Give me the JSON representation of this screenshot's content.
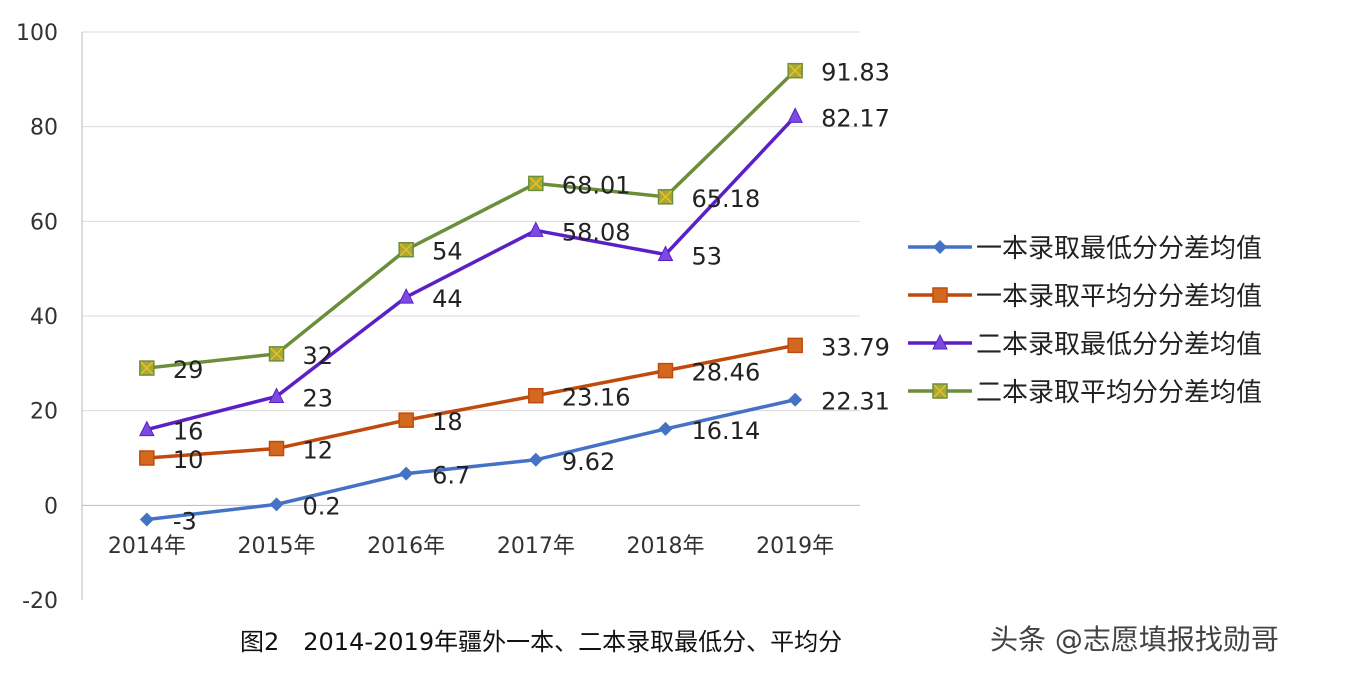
{
  "chart_data": {
    "type": "line",
    "categories": [
      "2014年",
      "2015年",
      "2016年",
      "2017年",
      "2018年",
      "2019年"
    ],
    "ylim": [
      -20,
      100
    ],
    "yticks": [
      -20,
      0,
      20,
      40,
      60,
      80,
      100
    ],
    "grid": true,
    "legend_position": "right",
    "series": [
      {
        "name": "一本录取最低分分差均值",
        "values": [
          -3,
          0.2,
          6.7,
          9.62,
          16.14,
          22.31
        ],
        "labels": [
          "-3",
          "0.2",
          "6.7",
          "9.62",
          "16.14",
          "22.31"
        ],
        "color": "#4472C4",
        "marker": "diamond"
      },
      {
        "name": "一本录取平均分分差均值",
        "values": [
          10,
          12,
          18,
          23.16,
          28.46,
          33.79
        ],
        "labels": [
          "10",
          "12",
          "18",
          "23.16",
          "28.46",
          "33.79"
        ],
        "color": "#C04A0E",
        "marker": "square"
      },
      {
        "name": "二本录取最低分分差均值",
        "values": [
          16,
          23,
          44,
          58.08,
          53,
          82.17
        ],
        "labels": [
          "16",
          "23",
          "44",
          "58.08",
          "53",
          "82.17"
        ],
        "color": "#5B1FC8",
        "marker": "triangle"
      },
      {
        "name": "二本录取平均分分差均值",
        "values": [
          29,
          32,
          54,
          68.01,
          65.18,
          91.83
        ],
        "labels": [
          "29",
          "32",
          "54",
          "68.01",
          "65.18",
          "91.83"
        ],
        "color": "#6B8E3A",
        "marker": "x-square"
      }
    ]
  },
  "caption": "图2　2014-2019年疆外一本、二本录取最低分、平均分",
  "watermark": "头条 @志愿填报找勋哥"
}
